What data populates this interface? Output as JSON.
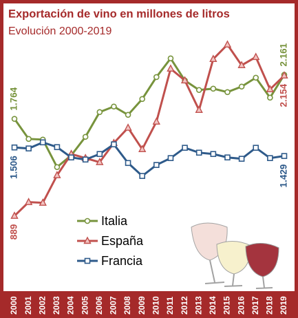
{
  "chart_data": {
    "type": "line",
    "title": "Exportación de vino en millones de litros",
    "subtitle": "Evolución 2000-2019",
    "categories": [
      "2000",
      "2001",
      "2002",
      "2003",
      "2004",
      "2005",
      "2006",
      "2007",
      "2008",
      "2009",
      "2010",
      "2011",
      "2012",
      "2013",
      "2014",
      "2015",
      "2016",
      "2017",
      "2018",
      "2019"
    ],
    "ylim": [
      800,
      2550
    ],
    "legend": "center-left",
    "series": [
      {
        "name": "Italia",
        "color": "#77933c",
        "marker": "circle",
        "values": [
          1764,
          1583,
          1577,
          1329,
          1435,
          1602,
          1825,
          1875,
          1800,
          1943,
          2141,
          2309,
          2110,
          2024,
          2036,
          2005,
          2055,
          2135,
          1955,
          2161
        ],
        "value_labels": [
          "1.764",
          null,
          null,
          null,
          null,
          null,
          null,
          null,
          null,
          null,
          null,
          null,
          null,
          null,
          null,
          null,
          null,
          null,
          null,
          "2.161"
        ]
      },
      {
        "name": "España",
        "color": "#c0504d",
        "marker": "triangle",
        "values": [
          889,
          1013,
          1007,
          1255,
          1447,
          1410,
          1373,
          1546,
          1683,
          1490,
          1738,
          2216,
          2110,
          1844,
          2303,
          2433,
          2247,
          2321,
          2030,
          2154
        ],
        "value_labels": [
          "889",
          null,
          null,
          null,
          null,
          null,
          null,
          null,
          null,
          null,
          null,
          null,
          null,
          null,
          null,
          null,
          null,
          null,
          null,
          "2.154"
        ]
      },
      {
        "name": "Francia",
        "color": "#2e5a8a",
        "marker": "square",
        "values": [
          1506,
          1497,
          1552,
          1509,
          1416,
          1397,
          1447,
          1534,
          1366,
          1249,
          1348,
          1410,
          1503,
          1459,
          1447,
          1416,
          1404,
          1503,
          1410,
          1429
        ],
        "value_labels": [
          "1.506",
          null,
          null,
          null,
          null,
          null,
          null,
          null,
          null,
          null,
          null,
          null,
          null,
          null,
          null,
          null,
          null,
          null,
          null,
          "1.429"
        ]
      }
    ]
  }
}
